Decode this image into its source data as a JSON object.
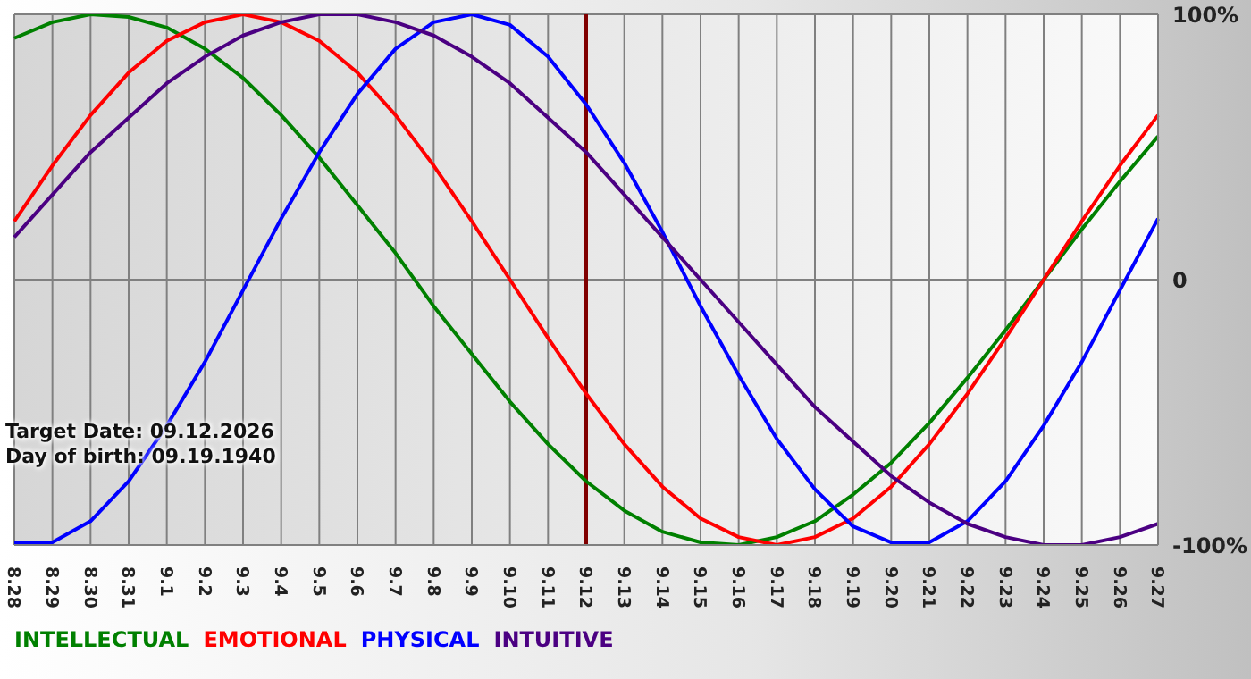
{
  "chart_data": {
    "type": "line",
    "categories": [
      "8.28",
      "8.29",
      "8.30",
      "8.31",
      "9.1",
      "9.2",
      "9.3",
      "9.4",
      "9.5",
      "9.6",
      "9.7",
      "9.8",
      "9.9",
      "9.10",
      "9.11",
      "9.12",
      "9.13",
      "9.14",
      "9.15",
      "9.16",
      "9.17",
      "9.18",
      "9.19",
      "9.20",
      "9.21",
      "9.22",
      "9.23",
      "9.24",
      "9.25",
      "9.26",
      "9.27"
    ],
    "series": [
      {
        "name": "INTELLECTUAL",
        "color": "#008000",
        "values": [
          91,
          97,
          100,
          99,
          95,
          87,
          76,
          62,
          46,
          28,
          10,
          -10,
          -28,
          -46,
          -62,
          -76,
          -87,
          -95,
          -99,
          -100,
          -97,
          -91,
          -81,
          -69,
          -54,
          -37,
          -19,
          0,
          19,
          37,
          54
        ]
      },
      {
        "name": "EMOTIONAL",
        "color": "#ff0000",
        "values": [
          22,
          43,
          62,
          78,
          90,
          97,
          100,
          97,
          90,
          78,
          62,
          43,
          22,
          0,
          -22,
          -43,
          -62,
          -78,
          -90,
          -97,
          -100,
          -97,
          -90,
          -78,
          -62,
          -43,
          -22,
          0,
          22,
          43,
          62
        ]
      },
      {
        "name": "PHYSICAL",
        "color": "#0000ff",
        "values": [
          -99,
          -99,
          -91,
          -76,
          -55,
          -31,
          -4,
          23,
          48,
          70,
          87,
          97,
          100,
          96,
          84,
          66,
          44,
          18,
          -10,
          -36,
          -60,
          -79,
          -93,
          -99,
          -99,
          -91,
          -76,
          -55,
          -31,
          -4,
          23
        ]
      },
      {
        "name": "INTUITIVE",
        "color": "#4b0082",
        "values": [
          16,
          32,
          48,
          61,
          74,
          84,
          92,
          97,
          100,
          100,
          97,
          92,
          84,
          74,
          61,
          48,
          32,
          16,
          0,
          -16,
          -32,
          -48,
          -61,
          -74,
          -84,
          -92,
          -97,
          -100,
          -100,
          -97,
          -92
        ]
      }
    ],
    "ylim": [
      -100,
      100
    ],
    "yticks": [
      {
        "value": 100,
        "label": "100%"
      },
      0,
      {
        "value": -100,
        "label": "-100%"
      }
    ],
    "ref_lines": [
      {
        "axis": "x",
        "value": "9.12",
        "color": "#800000"
      }
    ],
    "annotations": [
      "Target Date: 09.12.2026",
      "Day of birth: 09.19.1940"
    ],
    "grid": true,
    "legend": "bottom",
    "marker": "none",
    "line_style": "solid"
  }
}
